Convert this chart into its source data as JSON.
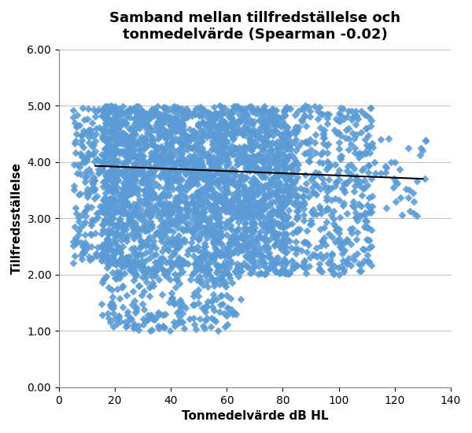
{
  "title": "Samband mellan tillfredställelse och\ntonmedelvärde (Spearman -0.02)",
  "xlabel": "Tonmedelvärde dB HL",
  "ylabel": "Tillfredsställelse",
  "xlim": [
    0,
    140
  ],
  "ylim": [
    0.0,
    6.0
  ],
  "xticks": [
    0,
    20,
    40,
    60,
    80,
    100,
    120,
    140
  ],
  "yticks": [
    0.0,
    1.0,
    2.0,
    3.0,
    4.0,
    5.0,
    6.0
  ],
  "marker_color": "#5B9BD5",
  "marker": "D",
  "marker_size": 5,
  "trend_color": "#000000",
  "trend_x": [
    13,
    130
  ],
  "trend_y": [
    3.93,
    3.7
  ],
  "background_color": "#FFFFFF",
  "grid_color": "#C0C0C0",
  "title_fontsize": 13,
  "label_fontsize": 11,
  "tick_fontsize": 10,
  "n_points": 3500,
  "seed": 42
}
